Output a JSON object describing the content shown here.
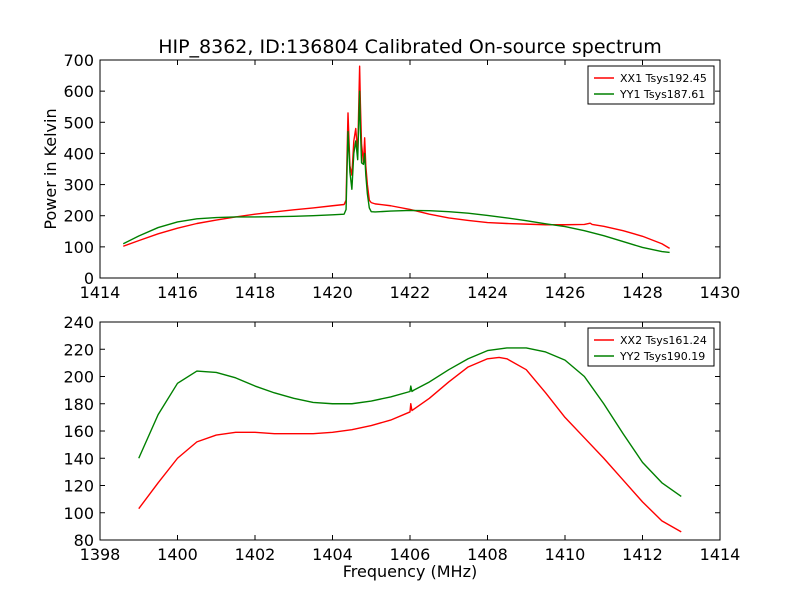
{
  "chart_data": [
    {
      "type": "line",
      "title": "HIP_8362, ID:136804 Calibrated On-source spectrum",
      "xlabel": "",
      "ylabel": "Power in Kelvin",
      "xlim": [
        1414,
        1430
      ],
      "ylim": [
        0,
        700
      ],
      "xticks": [
        "1414",
        "1416",
        "1418",
        "1420",
        "1422",
        "1424",
        "1426",
        "1428",
        "1430"
      ],
      "yticks": [
        "0",
        "100",
        "200",
        "300",
        "400",
        "500",
        "600",
        "700"
      ],
      "legend_position": "top-right",
      "series": [
        {
          "name": "XX1 Tsys192.45",
          "color": "#ff0000",
          "x": [
            1414.6,
            1415.0,
            1415.5,
            1416.0,
            1416.5,
            1417.0,
            1417.5,
            1418.0,
            1418.5,
            1419.0,
            1419.5,
            1420.0,
            1420.3,
            1420.35,
            1420.4,
            1420.45,
            1420.5,
            1420.55,
            1420.6,
            1420.65,
            1420.7,
            1420.72,
            1420.75,
            1420.8,
            1420.83,
            1420.86,
            1420.9,
            1420.95,
            1421.0,
            1421.1,
            1421.5,
            1422.0,
            1422.5,
            1423.0,
            1423.5,
            1424.0,
            1424.5,
            1425.0,
            1425.5,
            1426.0,
            1426.5,
            1426.65,
            1426.7,
            1427.0,
            1427.5,
            1428.0,
            1428.5,
            1428.7
          ],
          "y": [
            102,
            120,
            142,
            160,
            175,
            186,
            196,
            205,
            212,
            219,
            225,
            232,
            236,
            250,
            530,
            360,
            330,
            440,
            480,
            400,
            680,
            560,
            430,
            370,
            450,
            360,
            300,
            250,
            242,
            238,
            232,
            220,
            205,
            193,
            185,
            178,
            175,
            173,
            171,
            171,
            172,
            176,
            172,
            166,
            152,
            134,
            110,
            95
          ]
        },
        {
          "name": "YY1 Tsys187.61",
          "color": "#008000",
          "x": [
            1414.6,
            1415.0,
            1415.5,
            1416.0,
            1416.5,
            1417.0,
            1417.5,
            1418.0,
            1418.5,
            1419.0,
            1419.5,
            1420.0,
            1420.3,
            1420.35,
            1420.4,
            1420.45,
            1420.5,
            1420.55,
            1420.6,
            1420.65,
            1420.7,
            1420.72,
            1420.75,
            1420.8,
            1420.83,
            1420.86,
            1420.9,
            1420.95,
            1421.0,
            1421.1,
            1421.5,
            1422.0,
            1422.5,
            1423.0,
            1423.5,
            1424.0,
            1424.5,
            1425.0,
            1425.5,
            1426.0,
            1426.5,
            1427.0,
            1427.5,
            1428.0,
            1428.5,
            1428.7
          ],
          "y": [
            110,
            135,
            162,
            180,
            190,
            194,
            196,
            196,
            197,
            198,
            200,
            203,
            205,
            220,
            470,
            340,
            285,
            400,
            440,
            380,
            600,
            480,
            370,
            365,
            400,
            330,
            270,
            225,
            213,
            212,
            215,
            217,
            216,
            213,
            208,
            201,
            193,
            184,
            174,
            165,
            152,
            136,
            117,
            98,
            85,
            82
          ]
        }
      ]
    },
    {
      "type": "line",
      "title": "",
      "xlabel": "Frequency (MHz)",
      "ylabel": "",
      "xlim": [
        1398,
        1414
      ],
      "ylim": [
        80,
        240
      ],
      "xticks": [
        "1398",
        "1400",
        "1402",
        "1404",
        "1406",
        "1408",
        "1410",
        "1412",
        "1414"
      ],
      "yticks": [
        "80",
        "100",
        "120",
        "140",
        "160",
        "180",
        "200",
        "220",
        "240"
      ],
      "legend_position": "top-right",
      "series": [
        {
          "name": "XX2 Tsys161.24",
          "color": "#ff0000",
          "x": [
            1399.0,
            1399.5,
            1400.0,
            1400.5,
            1401.0,
            1401.5,
            1402.0,
            1402.5,
            1403.0,
            1403.5,
            1404.0,
            1404.5,
            1405.0,
            1405.5,
            1406.0,
            1406.02,
            1406.05,
            1406.1,
            1406.5,
            1407.0,
            1407.5,
            1408.0,
            1408.3,
            1408.5,
            1409.0,
            1409.5,
            1410.0,
            1410.5,
            1411.0,
            1411.5,
            1412.0,
            1412.5,
            1413.0
          ],
          "y": [
            103,
            122,
            140,
            152,
            157,
            159,
            159,
            158,
            158,
            158,
            159,
            161,
            164,
            168,
            174,
            180,
            175,
            176,
            184,
            196,
            207,
            213,
            214,
            213,
            205,
            188,
            170,
            155,
            140,
            124,
            108,
            94,
            86
          ]
        },
        {
          "name": "YY2 Tsys190.19",
          "color": "#008000",
          "x": [
            1399.0,
            1399.5,
            1400.0,
            1400.5,
            1401.0,
            1401.5,
            1402.0,
            1402.5,
            1403.0,
            1403.5,
            1404.0,
            1404.5,
            1405.0,
            1405.5,
            1406.0,
            1406.02,
            1406.05,
            1406.1,
            1406.5,
            1407.0,
            1407.5,
            1408.0,
            1408.5,
            1409.0,
            1409.5,
            1410.0,
            1410.5,
            1411.0,
            1411.5,
            1412.0,
            1412.5,
            1413.0
          ],
          "y": [
            140,
            172,
            195,
            204,
            203,
            199,
            193,
            188,
            184,
            181,
            180,
            180,
            182,
            185,
            189,
            193,
            189,
            190,
            196,
            205,
            213,
            219,
            221,
            221,
            218,
            212,
            200,
            180,
            158,
            137,
            122,
            112
          ]
        }
      ]
    }
  ]
}
